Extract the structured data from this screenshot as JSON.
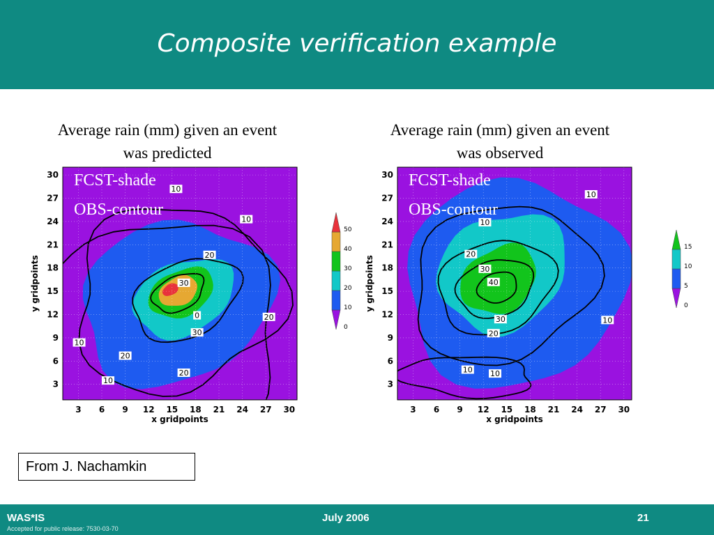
{
  "title": "Composite verification example",
  "credit": "From J. Nachamkin",
  "footer": {
    "left": "WAS*IS",
    "note": "Accepted for public release:  7530-03-70",
    "center": "July 2006",
    "page": "21"
  },
  "chart_data": [
    {
      "type": "heatmap",
      "caption_line1": "Average rain (mm) given an event",
      "caption_line2": "was predicted",
      "overlay_line1": "FCST-shade",
      "overlay_line2": "OBS-contour",
      "xlabel": "x gridpoints",
      "ylabel": "y gridpoints",
      "xlim": [
        1,
        31
      ],
      "ylim": [
        1,
        31
      ],
      "xticks": [
        3,
        6,
        9,
        12,
        15,
        18,
        21,
        24,
        27,
        30
      ],
      "yticks": [
        3,
        6,
        9,
        12,
        15,
        18,
        21,
        24,
        27,
        30
      ],
      "shade_levels": [
        0,
        10,
        20,
        30,
        40,
        50
      ],
      "shade_colors": [
        "#9a12e0",
        "#1e5bf0",
        "#12c8c8",
        "#12c41c",
        "#e6a832",
        "#e8323c"
      ],
      "contour_labels": [
        {
          "text": "10",
          "x": 15.5,
          "y": 28.2
        },
        {
          "text": "10",
          "x": 24.5,
          "y": 24.3
        },
        {
          "text": "20",
          "x": 19.8,
          "y": 19.7
        },
        {
          "text": "30",
          "x": 16.5,
          "y": 16.1
        },
        {
          "text": "0",
          "x": 18.2,
          "y": 11.9
        },
        {
          "text": "30",
          "x": 18.2,
          "y": 9.7
        },
        {
          "text": "20",
          "x": 27.4,
          "y": 11.7
        },
        {
          "text": "10",
          "x": 3.1,
          "y": 8.4
        },
        {
          "text": "20",
          "x": 9.0,
          "y": 6.7
        },
        {
          "text": "20",
          "x": 16.5,
          "y": 4.5
        },
        {
          "text": "10",
          "x": 6.8,
          "y": 3.5
        }
      ],
      "colorbar_labels": [
        "50",
        "40",
        "30",
        "20",
        "10",
        "0"
      ]
    },
    {
      "type": "heatmap",
      "caption_line1": "Average rain (mm) given an event",
      "caption_line2": "was observed",
      "overlay_line1": "FCST-shade",
      "overlay_line2": "OBS-contour",
      "xlabel": "x gridpoints",
      "ylabel": "y gridpoints",
      "xlim": [
        1,
        31
      ],
      "ylim": [
        1,
        31
      ],
      "xticks": [
        3,
        6,
        9,
        12,
        15,
        18,
        21,
        24,
        27,
        30
      ],
      "yticks": [
        3,
        6,
        9,
        12,
        15,
        18,
        21,
        24,
        27,
        30
      ],
      "shade_levels": [
        0,
        5,
        10,
        15
      ],
      "shade_colors": [
        "#9a12e0",
        "#1e5bf0",
        "#12c8c8",
        "#12c41c"
      ],
      "contour_labels": [
        {
          "text": "10",
          "x": 25.8,
          "y": 27.5
        },
        {
          "text": "10",
          "x": 12.2,
          "y": 23.9
        },
        {
          "text": "20",
          "x": 10.4,
          "y": 19.8
        },
        {
          "text": "30",
          "x": 12.2,
          "y": 17.9
        },
        {
          "text": "40",
          "x": 13.3,
          "y": 16.2
        },
        {
          "text": "30",
          "x": 14.2,
          "y": 11.4
        },
        {
          "text": "20",
          "x": 13.3,
          "y": 9.6
        },
        {
          "text": "10",
          "x": 27.9,
          "y": 11.3
        },
        {
          "text": "10",
          "x": 10.0,
          "y": 4.9
        },
        {
          "text": "10",
          "x": 13.5,
          "y": 4.4
        }
      ],
      "colorbar_labels": [
        "15",
        "10",
        "5",
        "0"
      ]
    }
  ]
}
